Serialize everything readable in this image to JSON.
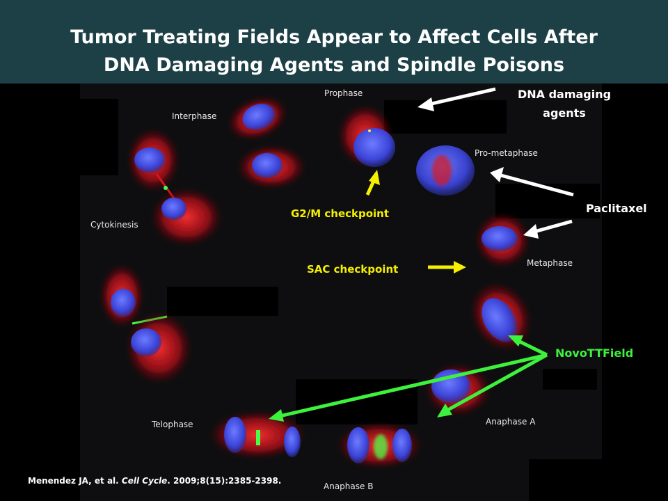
{
  "slide": {
    "title_line1": "Tumor Treating Fields Appear to Affect Cells After",
    "title_line2": "DNA Damaging Agents and Spindle Poisons"
  },
  "phase_labels": {
    "interphase": "Interphase",
    "prophase": "Prophase",
    "prometaphase": "Pro-metaphase",
    "metaphase": "Metaphase",
    "anaphase_a": "Anaphase A",
    "anaphase_b": "Anaphase B",
    "telophase": "Telophase",
    "cytokinesis": "Cytokinesis"
  },
  "annotations": {
    "dna_damaging_line1": "DNA damaging",
    "dna_damaging_line2": "agents",
    "paclitaxel": "Paclitaxel",
    "g2m": "G2/M checkpoint",
    "sac": "SAC checkpoint",
    "novottfield": "NovoTTField"
  },
  "citation": {
    "authors": "Menendez JA, et al.",
    "journal": "Cell Cycle",
    "details": "2009;8(15):2385-2398."
  },
  "colors": {
    "header_bg": "#1c4046",
    "annotation_white": "#ffffff",
    "annotation_yellow": "#f5f000",
    "annotation_green": "#3df23d",
    "nucleus_blue": "#3a4bdc",
    "spindle_red": "#d8151a"
  }
}
